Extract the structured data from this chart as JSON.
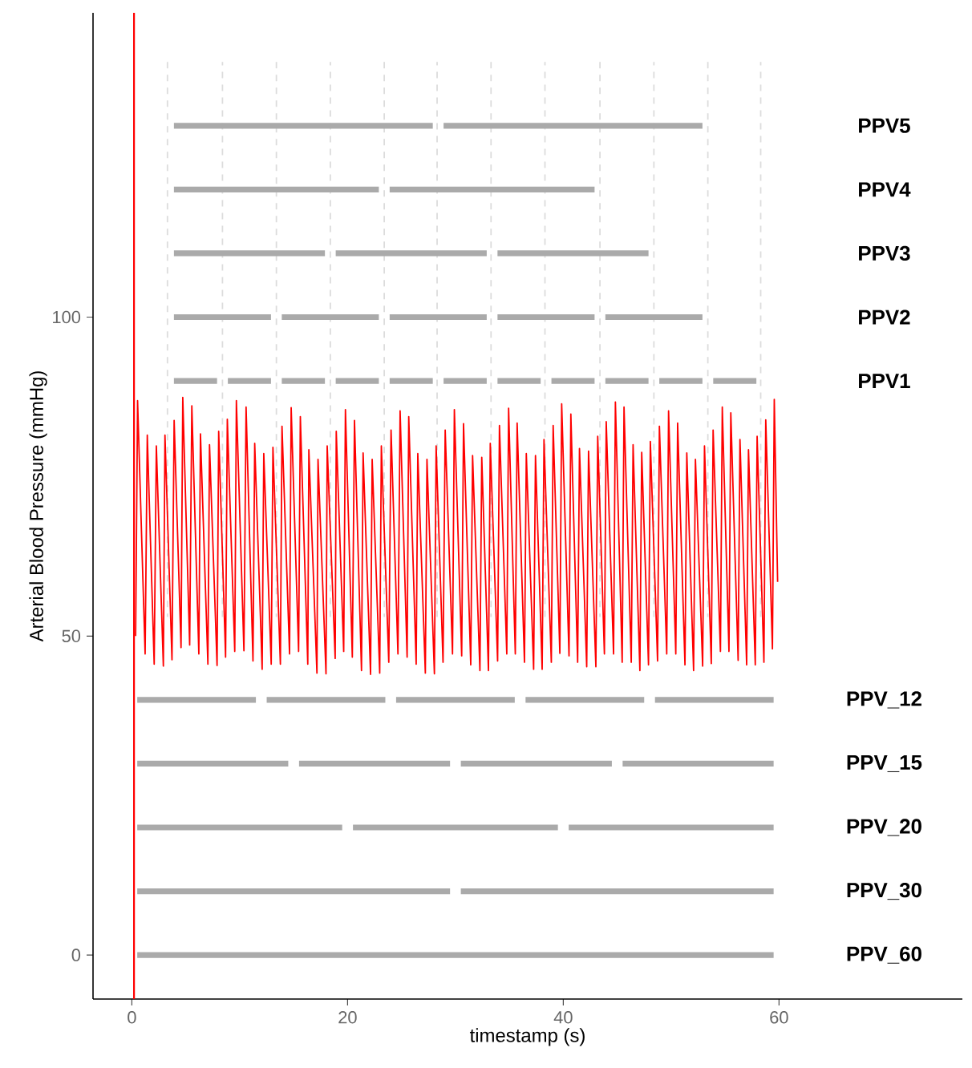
{
  "chart_data": {
    "type": "line",
    "xlabel": "timestamp (s)",
    "ylabel": "Arterial Blood Pressure (mmHg)",
    "xlim": [
      -3.6,
      77
    ],
    "ylim": [
      -6.9,
      147.7
    ],
    "xticks": [
      0,
      20,
      40,
      60
    ],
    "yticks": [
      0,
      50,
      100
    ],
    "grid": false,
    "marker": "none",
    "ref_lines": [
      {
        "axis": "x",
        "value": 0.2,
        "color": "#ff0000"
      }
    ],
    "series": [
      {
        "color": "#dcdcdc",
        "line_style": "dashed",
        "x": [
          3.3,
          3.3,
          null,
          8.4,
          8.4,
          null,
          13.4,
          13.4,
          null,
          18.4,
          18.4,
          null,
          23.4,
          23.4,
          null,
          28.3,
          28.3,
          null,
          33.3,
          33.3,
          null,
          38.3,
          38.3,
          null,
          43.4,
          43.4,
          null,
          48.4,
          48.4,
          null,
          53.4,
          53.4,
          null,
          58.3,
          58.3
        ],
        "values": [
          140,
          53,
          null,
          53,
          140,
          null,
          140,
          53,
          null,
          53,
          140,
          null,
          140,
          53,
          null,
          53,
          140,
          null,
          140,
          53,
          null,
          53,
          140,
          null,
          140,
          53,
          null,
          53,
          140,
          null,
          140,
          53,
          null,
          53,
          140
        ]
      },
      {
        "name": "PPV5",
        "color": "#aaaaaa",
        "x": [
          3.9,
          27.9,
          null,
          28.9,
          52.9
        ],
        "values": [
          130,
          130,
          null,
          130,
          130
        ]
      },
      {
        "name": "PPV4",
        "color": "#aaaaaa",
        "x": [
          3.9,
          22.9,
          null,
          23.9,
          42.9
        ],
        "values": [
          120,
          120,
          null,
          120,
          120
        ]
      },
      {
        "name": "PPV3",
        "color": "#aaaaaa",
        "x": [
          3.9,
          17.9,
          null,
          18.9,
          32.9,
          null,
          33.9,
          47.9
        ],
        "values": [
          110,
          110,
          null,
          110,
          110,
          null,
          110,
          110
        ]
      },
      {
        "name": "PPV2",
        "color": "#aaaaaa",
        "x": [
          3.9,
          12.9,
          null,
          13.9,
          22.9,
          null,
          23.9,
          32.9,
          null,
          33.9,
          42.9,
          null,
          43.9,
          52.9
        ],
        "values": [
          100,
          100,
          null,
          100,
          100,
          null,
          100,
          100,
          null,
          100,
          100,
          null,
          100,
          100
        ]
      },
      {
        "name": "PPV1",
        "color": "#aaaaaa",
        "x": [
          3.9,
          7.9,
          null,
          8.9,
          12.9,
          null,
          13.9,
          17.9,
          null,
          18.9,
          22.9,
          null,
          23.9,
          27.9,
          null,
          28.9,
          32.9,
          null,
          33.9,
          37.9,
          null,
          38.9,
          42.9,
          null,
          43.9,
          47.9,
          null,
          48.9,
          52.9,
          null,
          53.9,
          57.9
        ],
        "values": [
          90,
          90,
          null,
          90,
          90,
          null,
          90,
          90,
          null,
          90,
          90,
          null,
          90,
          90,
          null,
          90,
          90,
          null,
          90,
          90,
          null,
          90,
          90,
          null,
          90,
          90,
          null,
          90,
          90,
          null,
          90,
          90
        ]
      },
      {
        "name": "PPV_12",
        "color": "#aaaaaa",
        "x": [
          0.5,
          11.5,
          null,
          12.5,
          23.5,
          null,
          24.5,
          35.5,
          null,
          36.5,
          47.5,
          null,
          48.5,
          59.5
        ],
        "values": [
          40,
          40,
          null,
          40,
          40,
          null,
          40,
          40,
          null,
          40,
          40,
          null,
          40,
          40
        ]
      },
      {
        "name": "PPV_15",
        "color": "#aaaaaa",
        "x": [
          0.5,
          14.5,
          null,
          15.5,
          29.5,
          null,
          30.5,
          44.5,
          null,
          45.5,
          59.5
        ],
        "values": [
          30,
          30,
          null,
          30,
          30,
          null,
          30,
          30,
          null,
          30,
          30
        ]
      },
      {
        "name": "PPV_20",
        "color": "#aaaaaa",
        "x": [
          0.5,
          19.5,
          null,
          20.5,
          39.5,
          null,
          40.5,
          59.5
        ],
        "values": [
          20,
          20,
          null,
          20,
          20,
          null,
          20,
          20
        ]
      },
      {
        "name": "PPV_30",
        "color": "#aaaaaa",
        "x": [
          0.5,
          29.5,
          null,
          30.5,
          59.5
        ],
        "values": [
          10,
          10,
          null,
          10,
          10
        ]
      },
      {
        "name": "PPV_60",
        "color": "#aaaaaa",
        "x": [
          0.5,
          59.5
        ],
        "values": [
          0,
          0
        ]
      },
      {
        "color": "#ff0000",
        "x": [
          0.35,
          0.53,
          1.23,
          1.43,
          2.07,
          2.27,
          2.92,
          3.07,
          3.72,
          3.92,
          4.56,
          4.72,
          5.36,
          5.56,
          6.21,
          6.36,
          7.05,
          7.2,
          7.9,
          8.05,
          8.69,
          8.85,
          9.54,
          9.69,
          10.39,
          10.59,
          11.23,
          11.39,
          12.08,
          12.23,
          12.92,
          13.08,
          13.77,
          13.92,
          14.62,
          14.77,
          15.46,
          15.62,
          16.31,
          16.41,
          17.16,
          17.26,
          18.0,
          18.11,
          18.85,
          18.95,
          19.64,
          19.8,
          20.44,
          20.64,
          21.29,
          21.44,
          22.13,
          22.28,
          22.98,
          23.13,
          23.82,
          24.03,
          24.67,
          24.87,
          25.52,
          25.67,
          26.36,
          26.51,
          27.21,
          27.36,
          28.05,
          28.21,
          28.85,
          29.05,
          29.73,
          29.9,
          30.58,
          30.75,
          31.42,
          31.59,
          32.27,
          32.44,
          33.06,
          33.23,
          33.91,
          34.08,
          34.76,
          34.93,
          35.55,
          35.72,
          36.4,
          36.57,
          37.25,
          37.42,
          38.04,
          38.21,
          38.89,
          39.06,
          39.68,
          39.85,
          40.53,
          40.7,
          41.33,
          41.5,
          42.17,
          42.34,
          43.02,
          43.19,
          43.81,
          43.98,
          44.66,
          44.83,
          45.46,
          45.63,
          46.3,
          46.47,
          47.1,
          47.27,
          47.9,
          48.07,
          48.74,
          48.91,
          49.59,
          49.76,
          50.43,
          50.6,
          51.28,
          51.45,
          52.08,
          52.25,
          52.92,
          53.09,
          53.72,
          53.89,
          54.57,
          54.74,
          55.36,
          55.53,
          56.21,
          56.38,
          57.0,
          57.17,
          57.8,
          57.97,
          58.6,
          58.77,
          59.39,
          59.56,
          59.87
        ],
        "values": [
          50,
          86.9,
          47.2,
          81.5,
          45.6,
          79.8,
          45.3,
          81.5,
          46.3,
          83.8,
          48.2,
          87.4,
          48.6,
          86.1,
          47.2,
          81.7,
          45.6,
          80.0,
          45.4,
          82.1,
          46.7,
          84.0,
          47.6,
          86.9,
          47.7,
          85.9,
          46.1,
          80.2,
          44.8,
          78.6,
          45.6,
          79.6,
          45.6,
          82.9,
          47.2,
          85.8,
          47.6,
          84.4,
          45.6,
          79.2,
          44.2,
          77.7,
          44.1,
          79.8,
          46.5,
          82.1,
          47.6,
          85.5,
          46.7,
          83.8,
          44.6,
          78.7,
          44.0,
          77.7,
          44.2,
          79.8,
          45.9,
          82.3,
          47.2,
          85.3,
          46.7,
          84.4,
          45.6,
          78.6,
          44.2,
          77.7,
          44.1,
          79.8,
          45.9,
          82.3,
          47.2,
          85.5,
          46.9,
          83.3,
          45.5,
          78.3,
          44.6,
          78.0,
          44.6,
          80.2,
          46.1,
          83.0,
          47.2,
          85.7,
          47.2,
          83.4,
          45.9,
          78.6,
          44.8,
          78.3,
          44.8,
          80.8,
          45.9,
          83.0,
          47.3,
          86.4,
          46.9,
          84.8,
          45.9,
          79.4,
          45.2,
          79.0,
          45.2,
          81.3,
          47.2,
          83.6,
          47.2,
          86.7,
          45.9,
          85.9,
          45.9,
          80.0,
          44.6,
          78.8,
          45.5,
          80.5,
          46.1,
          82.9,
          47.2,
          85.3,
          47.2,
          83.4,
          45.5,
          78.7,
          44.6,
          77.7,
          45.3,
          79.8,
          45.7,
          82.3,
          47.6,
          85.9,
          47.6,
          85.0,
          46.2,
          80.8,
          45.5,
          79.2,
          45.5,
          81.3,
          45.9,
          83.9,
          48.0,
          87.1,
          58.5
        ]
      }
    ]
  }
}
